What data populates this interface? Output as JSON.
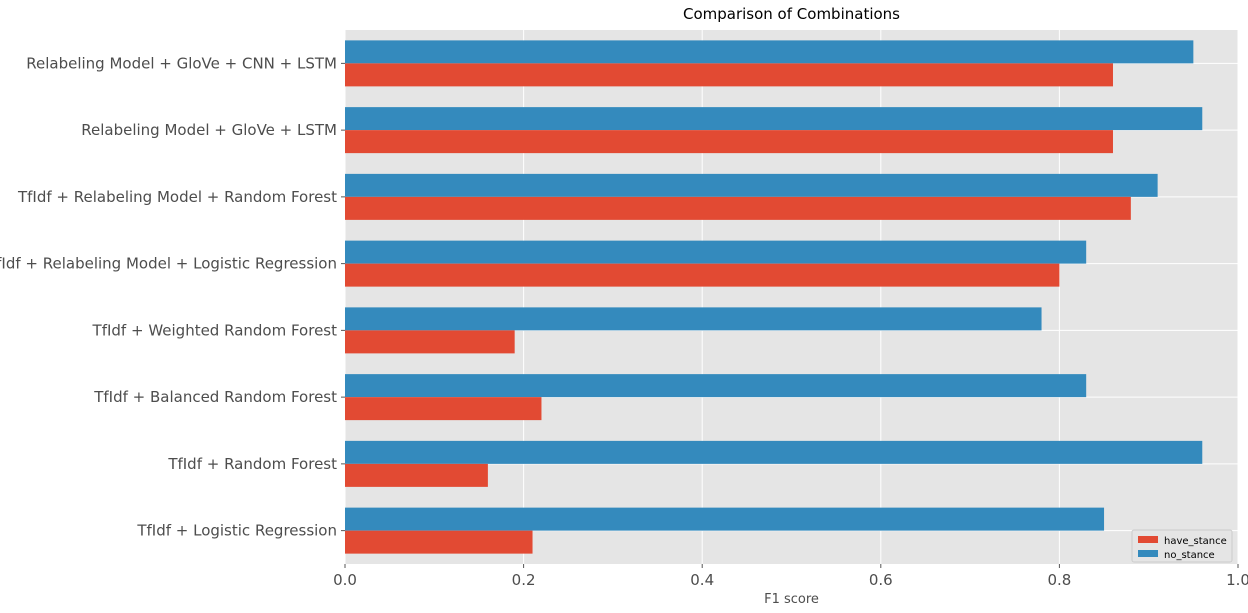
{
  "chart_data": {
    "type": "bar",
    "orientation": "horizontal",
    "title": "Comparison of Combinations",
    "xlabel": "F1 score",
    "ylabel": "",
    "xlim": [
      0,
      1.0
    ],
    "x_ticks": [
      0.0,
      0.2,
      0.4,
      0.6,
      0.8,
      1.0
    ],
    "x_tick_labels": [
      "0.0",
      "0.2",
      "0.4",
      "0.6",
      "0.8",
      "1.0"
    ],
    "grid": true,
    "legend_position": "bottom-right",
    "categories": [
      "Relabeling Model + GloVe + CNN + LSTM",
      "Relabeling Model + GloVe + LSTM",
      "TfIdf + Relabeling Model + Random Forest",
      "TfIdf + Relabeling Model + Logistic Regression",
      "TfIdf + Weighted Random Forest",
      "TfIdf + Balanced Random Forest",
      "TfIdf + Random Forest",
      "TfIdf + Logistic Regression"
    ],
    "series": [
      {
        "name": "have_stance",
        "color": "#E24A33",
        "values": [
          0.86,
          0.86,
          0.88,
          0.8,
          0.19,
          0.22,
          0.16,
          0.21
        ]
      },
      {
        "name": "no_stance",
        "color": "#348ABD",
        "values": [
          0.95,
          0.96,
          0.91,
          0.83,
          0.78,
          0.83,
          0.96,
          0.85
        ]
      }
    ],
    "colors": {
      "plot_background": "#E5E5E5",
      "grid": "#FFFFFF"
    }
  }
}
